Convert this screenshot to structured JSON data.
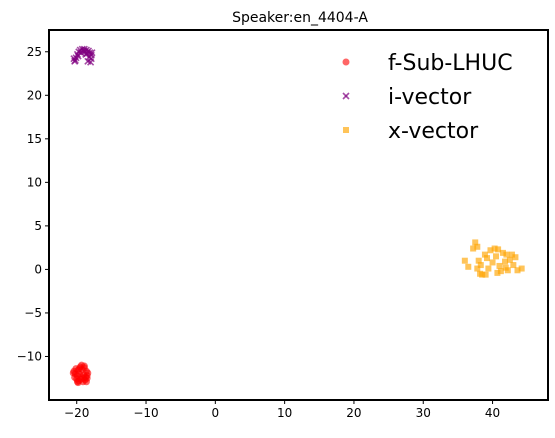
{
  "chart_data": {
    "type": "scatter",
    "title": "Speaker:en_4404-A",
    "xlabel": "",
    "ylabel": "",
    "xlim": [
      -24,
      48
    ],
    "ylim": [
      -15,
      27.5
    ],
    "x_ticks": [
      -20,
      -10,
      0,
      10,
      20,
      30,
      40
    ],
    "y_ticks": [
      -10,
      -5,
      0,
      5,
      10,
      15,
      20,
      25
    ],
    "grid": false,
    "legend_position": "top-right",
    "series": [
      {
        "name": "f-Sub-LHUC",
        "marker": "circle",
        "color": "#ff0000",
        "points": [
          [
            -20.1,
            -11.4
          ],
          [
            -19.8,
            -11.6
          ],
          [
            -19.5,
            -11.2
          ],
          [
            -19.2,
            -11.5
          ],
          [
            -18.9,
            -11.3
          ],
          [
            -18.6,
            -11.7
          ],
          [
            -18.4,
            -11.9
          ],
          [
            -20.4,
            -11.7
          ],
          [
            -20.2,
            -12.0
          ],
          [
            -19.9,
            -12.2
          ],
          [
            -19.6,
            -12.0
          ],
          [
            -19.3,
            -12.3
          ],
          [
            -19.0,
            -12.1
          ],
          [
            -18.7,
            -12.4
          ],
          [
            -18.5,
            -12.2
          ],
          [
            -20.3,
            -12.4
          ],
          [
            -20.0,
            -12.6
          ],
          [
            -19.7,
            -12.8
          ],
          [
            -19.4,
            -12.6
          ],
          [
            -19.1,
            -12.9
          ],
          [
            -18.8,
            -12.7
          ],
          [
            -18.5,
            -12.5
          ],
          [
            -19.8,
            -13.0
          ],
          [
            -19.3,
            -11.0
          ],
          [
            -18.9,
            -11.1
          ],
          [
            -20.5,
            -11.9
          ],
          [
            -19.6,
            -11.4
          ],
          [
            -19.0,
            -12.5
          ],
          [
            -18.6,
            -12.9
          ],
          [
            -19.9,
            -12.9
          ]
        ]
      },
      {
        "name": "i-vector",
        "marker": "x",
        "color": "#800080",
        "points": [
          [
            -20.3,
            23.9
          ],
          [
            -20.1,
            24.3
          ],
          [
            -19.9,
            24.7
          ],
          [
            -19.7,
            25.0
          ],
          [
            -19.5,
            25.2
          ],
          [
            -19.2,
            25.3
          ],
          [
            -18.9,
            25.3
          ],
          [
            -18.6,
            25.2
          ],
          [
            -18.3,
            25.1
          ],
          [
            -18.1,
            24.9
          ],
          [
            -17.9,
            24.6
          ],
          [
            -18.2,
            24.4
          ],
          [
            -18.5,
            24.8
          ],
          [
            -17.8,
            24.9
          ],
          [
            -18.0,
            23.8
          ],
          [
            -18.4,
            23.9
          ],
          [
            -20.2,
            24.0
          ],
          [
            -19.8,
            24.5
          ],
          [
            -19.4,
            24.9
          ],
          [
            -19.0,
            25.1
          ],
          [
            -18.7,
            24.7
          ],
          [
            -17.9,
            24.2
          ],
          [
            -20.4,
            24.2
          ],
          [
            -18.8,
            25.0
          ]
        ]
      },
      {
        "name": "x-vector",
        "marker": "square",
        "color": "#ffa500",
        "points": [
          [
            36.0,
            1.0
          ],
          [
            36.5,
            0.3
          ],
          [
            37.2,
            2.4
          ],
          [
            37.5,
            3.1
          ],
          [
            37.8,
            2.6
          ],
          [
            38.0,
            1.0
          ],
          [
            38.3,
            0.5
          ],
          [
            38.5,
            -0.6
          ],
          [
            38.9,
            1.7
          ],
          [
            39.2,
            1.3
          ],
          [
            39.4,
            0.1
          ],
          [
            39.7,
            2.2
          ],
          [
            40.0,
            0.8
          ],
          [
            40.3,
            2.4
          ],
          [
            40.5,
            1.5
          ],
          [
            40.8,
            2.3
          ],
          [
            41.0,
            0.4
          ],
          [
            41.2,
            -0.2
          ],
          [
            41.5,
            1.9
          ],
          [
            41.8,
            0.9
          ],
          [
            42.0,
            1.7
          ],
          [
            42.2,
            -0.1
          ],
          [
            42.5,
            1.1
          ],
          [
            42.8,
            1.7
          ],
          [
            43.0,
            0.5
          ],
          [
            43.3,
            1.4
          ],
          [
            43.6,
            -0.1
          ],
          [
            44.2,
            0.1
          ],
          [
            37.8,
            0.1
          ],
          [
            39.0,
            -0.6
          ],
          [
            40.7,
            -0.4
          ],
          [
            38.2,
            -0.5
          ],
          [
            41.9,
            0.2
          ]
        ]
      }
    ]
  }
}
